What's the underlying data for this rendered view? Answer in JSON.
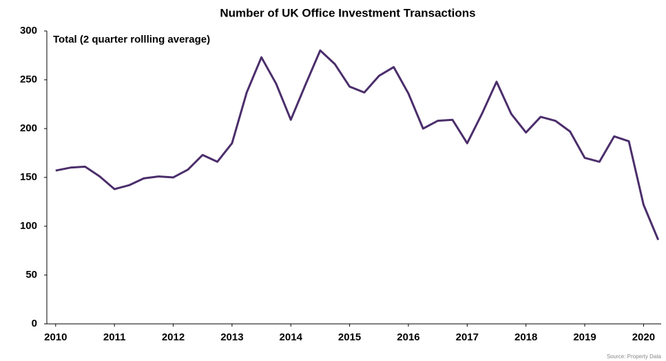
{
  "chart_data": {
    "type": "line",
    "title": "Number of UK Office Investment Transactions",
    "annotation": "Total (2 quarter rollling average)",
    "source": "Source: Property Data",
    "x": [
      2010,
      2010.25,
      2010.5,
      2010.75,
      2011,
      2011.25,
      2011.5,
      2011.75,
      2012,
      2012.25,
      2012.5,
      2012.75,
      2013,
      2013.25,
      2013.5,
      2013.75,
      2014,
      2014.25,
      2014.5,
      2014.75,
      2015,
      2015.25,
      2015.5,
      2015.75,
      2016,
      2016.25,
      2016.5,
      2016.75,
      2017,
      2017.25,
      2017.5,
      2017.75,
      2018,
      2018.25,
      2018.5,
      2018.75,
      2019,
      2019.25,
      2019.5,
      2019.75,
      2020,
      2020.25
    ],
    "series": [
      {
        "name": "Total",
        "color": "#4b2e6b",
        "values": [
          157,
          160,
          161,
          151,
          138,
          142,
          149,
          151,
          150,
          158,
          173,
          166,
          185,
          237,
          273,
          246,
          209,
          245,
          280,
          266,
          243,
          237,
          254,
          263,
          236,
          200,
          208,
          209,
          185,
          215,
          248,
          215,
          196,
          212,
          208,
          197,
          170,
          166,
          192,
          187,
          122,
          86
        ]
      }
    ],
    "xlim": [
      2009.85,
      2020.3
    ],
    "xticks": [
      2010,
      2011,
      2012,
      2013,
      2014,
      2015,
      2016,
      2017,
      2018,
      2019,
      2020
    ],
    "ylim": [
      0,
      300
    ],
    "yticks": [
      0,
      50,
      100,
      150,
      200,
      250,
      300
    ],
    "grid": false
  }
}
